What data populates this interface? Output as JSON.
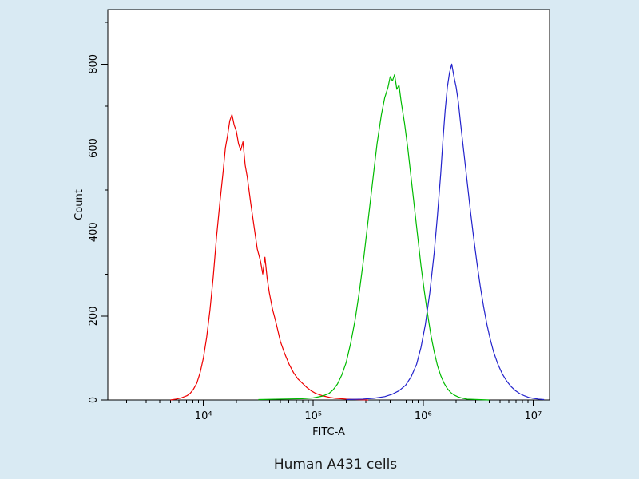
{
  "page": {
    "caption": "Human A431 cells",
    "background_color": "#d9eaf3"
  },
  "chart_data": {
    "type": "line",
    "subtype": "flow-cytometry-histogram-overlay",
    "title": "",
    "xlabel": "FITC-A",
    "ylabel": "Count",
    "x_scale": "log10",
    "xlim_log10": [
      3.13,
      7.15
    ],
    "ylim": [
      0,
      930
    ],
    "grid": false,
    "legend": null,
    "frame_color": "#000000",
    "plot_background": "#ffffff",
    "x_major_ticks": [
      {
        "exp": 4,
        "label": "10⁴"
      },
      {
        "exp": 5,
        "label": "10⁵"
      },
      {
        "exp": 6,
        "label": "10⁶"
      },
      {
        "exp": 7,
        "label": "10⁷"
      }
    ],
    "y_major_ticks": [
      {
        "value": 0,
        "label": "0"
      },
      {
        "value": 200,
        "label": "200"
      },
      {
        "value": 400,
        "label": "400"
      },
      {
        "value": 600,
        "label": "600"
      },
      {
        "value": 800,
        "label": "800"
      }
    ],
    "y_minor_step": 100,
    "series": [
      {
        "name": "red-peak",
        "color": "#ee0000",
        "peak_x": 18000,
        "peak_count": 680,
        "points_log10x_count": [
          [
            3.7,
            0
          ],
          [
            3.75,
            2
          ],
          [
            3.8,
            5
          ],
          [
            3.85,
            10
          ],
          [
            3.88,
            16
          ],
          [
            3.91,
            26
          ],
          [
            3.94,
            40
          ],
          [
            3.97,
            65
          ],
          [
            4.0,
            100
          ],
          [
            4.03,
            150
          ],
          [
            4.06,
            215
          ],
          [
            4.09,
            295
          ],
          [
            4.12,
            390
          ],
          [
            4.15,
            470
          ],
          [
            4.18,
            545
          ],
          [
            4.2,
            600
          ],
          [
            4.22,
            630
          ],
          [
            4.24,
            665
          ],
          [
            4.26,
            680
          ],
          [
            4.28,
            655
          ],
          [
            4.3,
            640
          ],
          [
            4.32,
            610
          ],
          [
            4.34,
            595
          ],
          [
            4.36,
            615
          ],
          [
            4.38,
            560
          ],
          [
            4.4,
            530
          ],
          [
            4.43,
            470
          ],
          [
            4.46,
            415
          ],
          [
            4.49,
            360
          ],
          [
            4.52,
            330
          ],
          [
            4.54,
            300
          ],
          [
            4.56,
            340
          ],
          [
            4.58,
            290
          ],
          [
            4.6,
            255
          ],
          [
            4.63,
            215
          ],
          [
            4.66,
            185
          ],
          [
            4.7,
            140
          ],
          [
            4.74,
            110
          ],
          [
            4.78,
            85
          ],
          [
            4.82,
            65
          ],
          [
            4.86,
            50
          ],
          [
            4.9,
            40
          ],
          [
            4.94,
            30
          ],
          [
            4.98,
            22
          ],
          [
            5.02,
            16
          ],
          [
            5.06,
            12
          ],
          [
            5.1,
            9
          ],
          [
            5.15,
            6
          ],
          [
            5.2,
            4
          ],
          [
            5.3,
            2
          ],
          [
            5.4,
            1
          ],
          [
            5.5,
            0
          ]
        ]
      },
      {
        "name": "green-peak",
        "color": "#00bb00",
        "peak_x": 520000,
        "peak_count": 775,
        "points_log10x_count": [
          [
            4.5,
            1
          ],
          [
            4.7,
            2
          ],
          [
            4.9,
            3
          ],
          [
            5.0,
            5
          ],
          [
            5.08,
            9
          ],
          [
            5.14,
            15
          ],
          [
            5.18,
            24
          ],
          [
            5.22,
            38
          ],
          [
            5.26,
            60
          ],
          [
            5.3,
            90
          ],
          [
            5.34,
            135
          ],
          [
            5.38,
            190
          ],
          [
            5.42,
            260
          ],
          [
            5.46,
            340
          ],
          [
            5.5,
            430
          ],
          [
            5.54,
            520
          ],
          [
            5.58,
            610
          ],
          [
            5.62,
            680
          ],
          [
            5.65,
            720
          ],
          [
            5.68,
            745
          ],
          [
            5.7,
            770
          ],
          [
            5.72,
            760
          ],
          [
            5.74,
            775
          ],
          [
            5.76,
            740
          ],
          [
            5.78,
            750
          ],
          [
            5.8,
            710
          ],
          [
            5.83,
            660
          ],
          [
            5.86,
            600
          ],
          [
            5.89,
            530
          ],
          [
            5.92,
            460
          ],
          [
            5.95,
            390
          ],
          [
            5.98,
            320
          ],
          [
            6.01,
            260
          ],
          [
            6.04,
            205
          ],
          [
            6.07,
            155
          ],
          [
            6.1,
            115
          ],
          [
            6.13,
            82
          ],
          [
            6.16,
            58
          ],
          [
            6.19,
            40
          ],
          [
            6.22,
            27
          ],
          [
            6.25,
            18
          ],
          [
            6.28,
            12
          ],
          [
            6.32,
            7
          ],
          [
            6.36,
            4
          ],
          [
            6.4,
            2
          ],
          [
            6.5,
            1
          ],
          [
            6.6,
            0
          ]
        ]
      },
      {
        "name": "blue-peak",
        "color": "#2222cc",
        "peak_x": 1800000,
        "peak_count": 800,
        "points_log10x_count": [
          [
            5.3,
            1
          ],
          [
            5.45,
            2
          ],
          [
            5.55,
            4
          ],
          [
            5.65,
            8
          ],
          [
            5.72,
            14
          ],
          [
            5.78,
            22
          ],
          [
            5.84,
            35
          ],
          [
            5.89,
            55
          ],
          [
            5.94,
            85
          ],
          [
            5.98,
            125
          ],
          [
            6.02,
            180
          ],
          [
            6.06,
            255
          ],
          [
            6.1,
            350
          ],
          [
            6.13,
            440
          ],
          [
            6.16,
            540
          ],
          [
            6.18,
            620
          ],
          [
            6.2,
            690
          ],
          [
            6.22,
            745
          ],
          [
            6.24,
            780
          ],
          [
            6.26,
            800
          ],
          [
            6.28,
            770
          ],
          [
            6.3,
            745
          ],
          [
            6.32,
            710
          ],
          [
            6.34,
            660
          ],
          [
            6.37,
            590
          ],
          [
            6.4,
            520
          ],
          [
            6.43,
            450
          ],
          [
            6.46,
            385
          ],
          [
            6.49,
            325
          ],
          [
            6.52,
            270
          ],
          [
            6.55,
            222
          ],
          [
            6.58,
            180
          ],
          [
            6.61,
            145
          ],
          [
            6.64,
            115
          ],
          [
            6.68,
            85
          ],
          [
            6.72,
            62
          ],
          [
            6.76,
            45
          ],
          [
            6.8,
            32
          ],
          [
            6.84,
            22
          ],
          [
            6.88,
            15
          ],
          [
            6.92,
            10
          ],
          [
            6.96,
            6
          ],
          [
            7.0,
            4
          ],
          [
            7.05,
            2
          ],
          [
            7.1,
            1
          ]
        ]
      }
    ]
  }
}
